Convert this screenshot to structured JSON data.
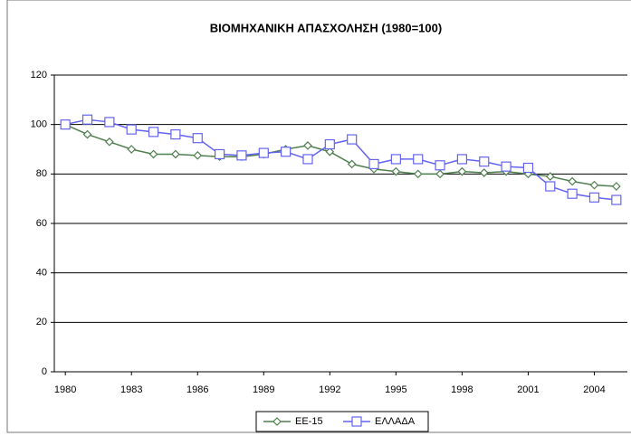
{
  "chart_data": {
    "type": "line",
    "title": "ΒΙΟΜΗΧΑΝΙΚΗ ΑΠΑΣΧΟΛΗΣΗ (1980=100)",
    "x": [
      1980,
      1981,
      1982,
      1983,
      1984,
      1985,
      1986,
      1987,
      1988,
      1989,
      1990,
      1991,
      1992,
      1993,
      1994,
      1995,
      1996,
      1997,
      1998,
      1999,
      2000,
      2001,
      2002,
      2003,
      2004,
      2005
    ],
    "series": [
      {
        "name": "ΕΕ-15",
        "color": "#4f7f4f",
        "marker": "diamond",
        "values": [
          100,
          96,
          93,
          90,
          88,
          88,
          87.5,
          87,
          87,
          88,
          90,
          91.5,
          89,
          84,
          82,
          81,
          80,
          80,
          81,
          80.5,
          81,
          80,
          79,
          77,
          75.5,
          75
        ]
      },
      {
        "name": "ΕΛΛΑΔΑ",
        "color": "#6464f0",
        "marker": "square",
        "values": [
          100,
          102,
          101,
          98,
          97,
          96,
          94.5,
          88,
          87.5,
          88.5,
          89,
          86,
          92,
          94,
          84,
          86,
          86,
          83.5,
          86,
          85,
          83,
          82.5,
          75,
          72,
          70.5,
          69.5
        ]
      }
    ],
    "xlim": [
      1979.5,
      2005.5
    ],
    "xticks": [
      1980,
      1983,
      1986,
      1989,
      1992,
      1995,
      1998,
      2001,
      2004
    ],
    "ylim": [
      0,
      120
    ],
    "yticks": [
      0,
      20,
      40,
      60,
      80,
      100,
      120
    ],
    "grid": true,
    "legend": "bottom"
  }
}
